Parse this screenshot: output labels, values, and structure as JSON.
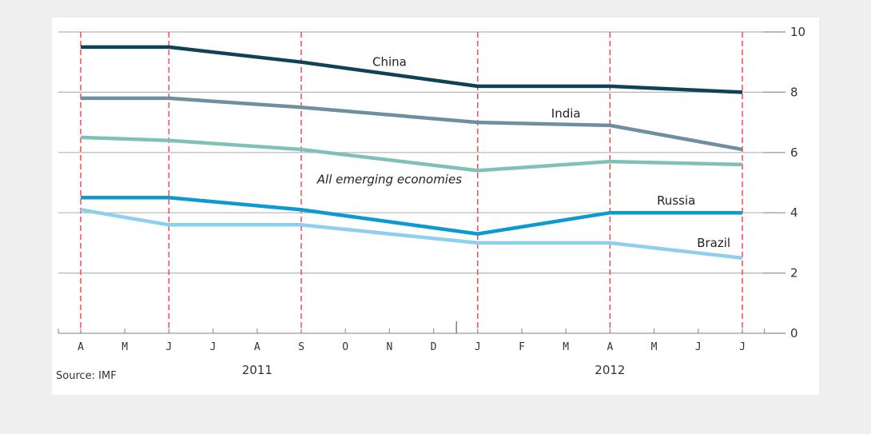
{
  "source": "Source: IMF",
  "chart_data": {
    "type": "line",
    "x": [
      "A",
      "M",
      "J",
      "J",
      "A",
      "S",
      "O",
      "N",
      "D",
      "J",
      "F",
      "M",
      "A",
      "M",
      "J",
      "J"
    ],
    "years": [
      {
        "label": "2011",
        "from": 0,
        "to": 8
      },
      {
        "label": "2012",
        "from": 9,
        "to": 15
      }
    ],
    "ylim": [
      0,
      10
    ],
    "yticks": [
      0,
      2,
      4,
      6,
      8,
      10
    ],
    "y_axis_side": "right",
    "grid": "horizontal",
    "highlight_months": [
      0,
      2,
      5,
      9,
      12,
      15
    ],
    "series": [
      {
        "name": "China",
        "color": "#0f4157",
        "points": [
          [
            0,
            9.5
          ],
          [
            2,
            9.5
          ],
          [
            5,
            9.0
          ],
          [
            9,
            8.2
          ],
          [
            12,
            8.2
          ],
          [
            15,
            8.0
          ]
        ],
        "label_at": [
          7,
          9.0
        ]
      },
      {
        "name": "India",
        "color": "#6e8fa0",
        "points": [
          [
            0,
            7.8
          ],
          [
            2,
            7.8
          ],
          [
            5,
            7.5
          ],
          [
            9,
            7.0
          ],
          [
            12,
            6.9
          ],
          [
            15,
            6.1
          ]
        ],
        "label_at": [
          11,
          7.3
        ]
      },
      {
        "name": "All emerging economies",
        "color": "#7fc0b8",
        "italic": true,
        "points": [
          [
            0,
            6.5
          ],
          [
            2,
            6.4
          ],
          [
            5,
            6.1
          ],
          [
            9,
            5.4
          ],
          [
            12,
            5.7
          ],
          [
            15,
            5.6
          ]
        ],
        "label_at": [
          7,
          5.1
        ]
      },
      {
        "name": "Russia",
        "color": "#0d9ad1",
        "points": [
          [
            0,
            4.5
          ],
          [
            2,
            4.5
          ],
          [
            5,
            4.1
          ],
          [
            9,
            3.3
          ],
          [
            12,
            4.0
          ],
          [
            15,
            4.0
          ]
        ],
        "label_at": [
          13.5,
          4.4
        ]
      },
      {
        "name": "Brazil",
        "color": "#8ecfee",
        "points": [
          [
            0,
            4.1
          ],
          [
            2,
            3.6
          ],
          [
            5,
            3.6
          ],
          [
            9,
            3.0
          ],
          [
            12,
            3.0
          ],
          [
            15,
            2.5
          ]
        ],
        "label_at": [
          14.35,
          3.0
        ]
      }
    ]
  }
}
